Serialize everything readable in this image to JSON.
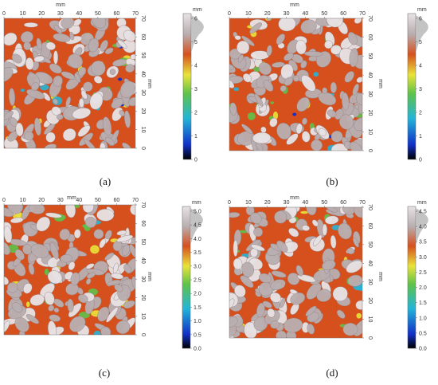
{
  "panels": [
    {
      "id": "a",
      "caption": "(a)",
      "unit": "mm",
      "x_ticks": [
        "0",
        "10",
        "20",
        "30",
        "40",
        "50",
        "60",
        "70"
      ],
      "y_ticks": [
        "70",
        "60",
        "50",
        "40",
        "30",
        "20",
        "10",
        "0"
      ],
      "y_unit": "mm",
      "colorbar_ticks": [
        "6",
        "5",
        "4",
        "3",
        "2",
        "1",
        "0"
      ],
      "colorbar_unit": "mm"
    },
    {
      "id": "b",
      "caption": "(b)",
      "unit": "mm",
      "x_ticks": [
        "0",
        "10",
        "20",
        "30",
        "40",
        "50",
        "60",
        "70"
      ],
      "y_ticks": [
        "70",
        "60",
        "50",
        "40",
        "30",
        "20",
        "10",
        "0"
      ],
      "y_unit": "mm",
      "colorbar_ticks": [
        "6",
        "5",
        "4",
        "3",
        "2",
        "1",
        "0"
      ],
      "colorbar_unit": "mm"
    },
    {
      "id": "c",
      "caption": "(c)",
      "unit": "mm",
      "x_ticks": [
        "0",
        "10",
        "20",
        "30",
        "40",
        "50",
        "60",
        "70"
      ],
      "y_ticks": [
        "70",
        "60",
        "50",
        "40",
        "30",
        "20",
        "10",
        "0"
      ],
      "y_unit": "mm",
      "colorbar_ticks": [
        "5.0",
        "4.5",
        "4.0",
        "3.5",
        "3.0",
        "2.5",
        "2.0",
        "1.5",
        "1.0",
        "0.5",
        "0.0"
      ],
      "colorbar_unit": "mm"
    },
    {
      "id": "d",
      "caption": "(d)",
      "unit": "mm",
      "x_ticks": [
        "0",
        "10",
        "20",
        "30",
        "40",
        "50",
        "60",
        "70"
      ],
      "y_ticks": [
        "70",
        "60",
        "50",
        "40",
        "30",
        "20",
        "10",
        "0"
      ],
      "y_unit": "mm",
      "colorbar_ticks": [
        "4.5",
        "4.0",
        "3.5",
        "3.0",
        "2.5",
        "2.0",
        "1.5",
        "1.0",
        "0.5",
        "0.0"
      ],
      "colorbar_unit": "mm"
    }
  ],
  "colors": {
    "surface_base": "#d6501e",
    "aggregate": "#b9aeb0",
    "high": "#e7e2e4",
    "mid_yellow": "#e9e33a",
    "mid_green": "#5ec24a",
    "low_cyan": "#23b5d8",
    "low_blue": "#1230c8",
    "lowest": "#000000"
  }
}
